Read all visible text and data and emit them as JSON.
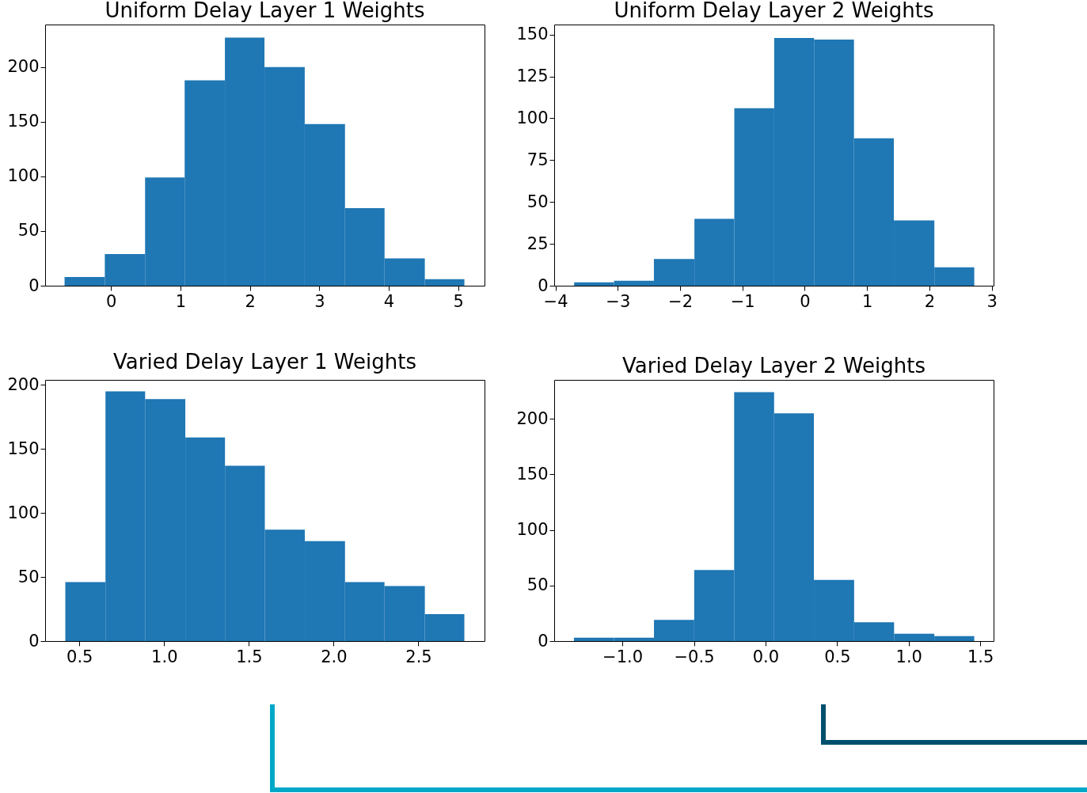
{
  "chart_data": [
    {
      "type": "histogram",
      "title": "Uniform Delay Layer 1 Weights",
      "color": "#1f77b4",
      "bins": [
        -0.67,
        -0.09,
        0.49,
        1.06,
        1.64,
        2.21,
        2.79,
        3.37,
        3.94,
        4.52,
        5.09
      ],
      "values": [
        8,
        29,
        99,
        188,
        227,
        200,
        148,
        71,
        25,
        6
      ],
      "xlim": [
        -0.95,
        5.38
      ],
      "xticks": [
        0,
        1,
        2,
        3,
        4,
        5
      ],
      "ylim": [
        0,
        239
      ],
      "yticks": [
        0,
        50,
        100,
        150,
        200
      ]
    },
    {
      "type": "histogram",
      "title": "Uniform Delay Layer 2 Weights",
      "color": "#1f77b4",
      "bins": [
        -3.7,
        -3.06,
        -2.42,
        -1.77,
        -1.13,
        -0.49,
        0.15,
        0.79,
        1.43,
        2.08,
        2.72
      ],
      "values": [
        2,
        3,
        16,
        40,
        106,
        148,
        147,
        88,
        39,
        11
      ],
      "xlim": [
        -4.02,
        3.03
      ],
      "xticks": [
        {
          "value": -4,
          "label": "−4"
        },
        {
          "value": -3,
          "label": "−3"
        },
        {
          "value": -2,
          "label": "−2"
        },
        {
          "value": -1,
          "label": "−1"
        },
        0,
        1,
        2,
        3
      ],
      "ylim": [
        0,
        156
      ],
      "yticks": [
        0,
        25,
        50,
        75,
        100,
        125,
        150
      ]
    },
    {
      "type": "histogram",
      "title": "Varied Delay Layer 1 Weights",
      "color": "#1f77b4",
      "bins": [
        0.417,
        0.654,
        0.888,
        1.125,
        1.359,
        1.594,
        1.83,
        2.067,
        2.3,
        2.538,
        2.771
      ],
      "values": [
        46,
        195,
        189,
        159,
        137,
        87,
        78,
        46,
        43,
        21
      ],
      "xlim": [
        0.298,
        2.89
      ],
      "xticks": [
        0.5,
        {
          "value": 1,
          "label": "1.0"
        },
        1.5,
        {
          "value": 2,
          "label": "2.0"
        },
        2.5
      ],
      "ylim": [
        0,
        204
      ],
      "yticks": [
        0,
        50,
        100,
        150,
        200
      ]
    },
    {
      "type": "histogram",
      "title": "Varied Delay Layer 2 Weights",
      "color": "#1f77b4",
      "bins": [
        -1.338,
        -1.058,
        -0.779,
        -0.498,
        -0.219,
        0.06,
        0.338,
        0.619,
        0.898,
        1.179,
        1.458
      ],
      "values": [
        3,
        3,
        19,
        64,
        224,
        205,
        55,
        17,
        6.5,
        4.5
      ],
      "xlim": [
        -1.476,
        1.593
      ],
      "xticks": [
        {
          "value": -1,
          "label": "−1.0"
        },
        {
          "value": -0.5,
          "label": "−0.5"
        },
        {
          "value": 0,
          "label": "0.0"
        },
        0.5,
        {
          "value": 1,
          "label": "1.0"
        },
        1.5
      ],
      "ylim": [
        0,
        235
      ],
      "yticks": [
        0,
        50,
        100,
        150,
        200
      ]
    }
  ]
}
